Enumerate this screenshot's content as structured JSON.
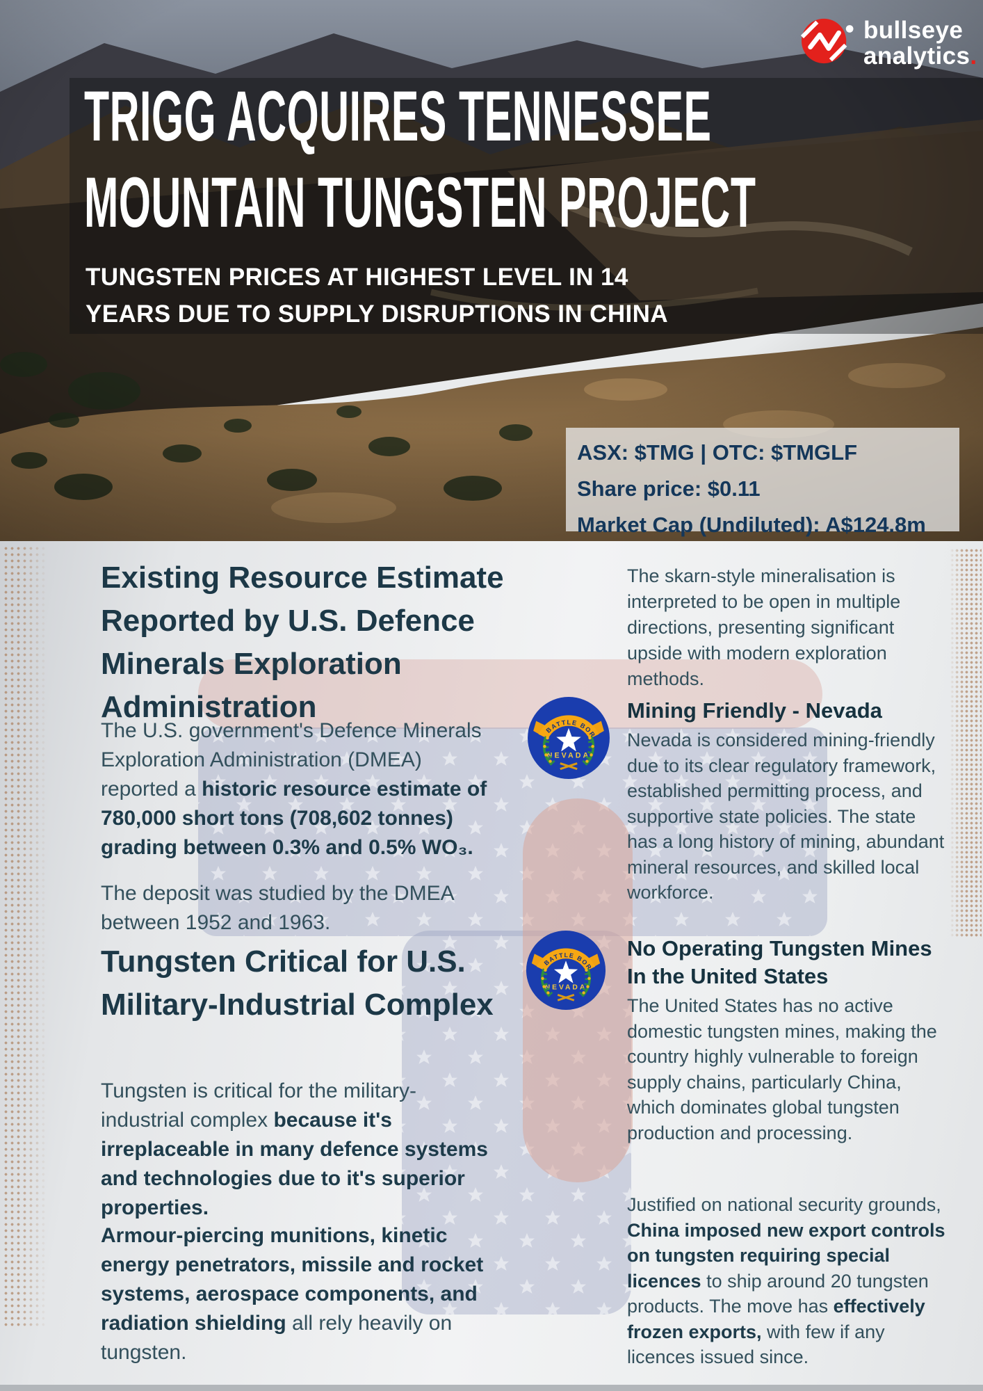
{
  "brand": {
    "line1": "bullseye",
    "line2": "analytics",
    "dot": "."
  },
  "hero": {
    "title_line1": "TRIGG ACQUIRES TENNESSEE",
    "title_line2": "MOUNTAIN TUNGSTEN PROJECT",
    "subtitle_line1": "TUNGSTEN PRICES AT HIGHEST LEVEL IN 14",
    "subtitle_line2": "YEARS DUE TO SUPPLY DISRUPTIONS IN CHINA",
    "stock": {
      "tickers": "ASX: $TMG | OTC: $TMGLF",
      "share_price": "Share price: $0.11",
      "market_cap": "Market Cap (Undiluted): A$124.8m"
    }
  },
  "left_column": {
    "heading1": "Existing Resource Estimate Reported by U.S. Defence Minerals Exploration Administration",
    "para1": [
      {
        "t": "The U.S. government's Defence Minerals Exploration Administration (DMEA) reported a ",
        "b": false
      },
      {
        "t": "historic resource estimate of 780,000 short tons (708,602 tonnes) grading between 0.3% and 0.5% WO₃.",
        "b": true
      }
    ],
    "para2": [
      {
        "t": "The deposit was studied by the DMEA between 1952 and 1963.",
        "b": false
      }
    ],
    "heading2": "Tungsten Critical for U.S. Military-Industrial Complex",
    "para3": [
      {
        "t": "Tungsten is critical for the military-industrial complex ",
        "b": false
      },
      {
        "t": "because it's irreplaceable in many defence systems and technologies due to it's superior properties.",
        "b": true
      }
    ],
    "para4": [
      {
        "t": "Armour-piercing munitions, kinetic energy penetrators, missile and rocket systems, aerospace components, and radiation shielding",
        "b": true
      },
      {
        "t": " all rely heavily on tungsten.",
        "b": false
      }
    ]
  },
  "right_column": {
    "para1": [
      {
        "t": "The skarn-style mineralisation is interpreted to be open in multiple directions, presenting significant upside with modern exploration methods.",
        "b": false
      }
    ],
    "section1": {
      "heading": "Mining Friendly - Nevada",
      "body": [
        {
          "t": "Nevada is considered mining-friendly due to its clear regulatory framework, established permitting process, and supportive state policies. The state has a long history of mining, abundant mineral resources, and skilled local workforce.",
          "b": false
        }
      ]
    },
    "section2": {
      "heading": "No Operating Tungsten Mines In the United States",
      "body": [
        {
          "t": "The United States has no active domestic tungsten mines, making the country highly vulnerable to foreign supply chains, particularly China, which dominates global tungsten production and processing.",
          "b": false
        }
      ]
    },
    "para2": [
      {
        "t": "Justified on national security grounds, ",
        "b": false
      },
      {
        "t": "China imposed new export controls on tungsten requiring special licences",
        "b": true
      },
      {
        "t": " to ship around 20 tungsten products. The move has ",
        "b": false
      },
      {
        "t": "effectively frozen exports,",
        "b": true
      },
      {
        "t": " with few if any licences issued since.",
        "b": false
      }
    ]
  },
  "nevada_flag": {
    "motto": "BATTLE BORN",
    "name": "NEVADA"
  },
  "colors": {
    "accent_red": "#e3211c",
    "navy_heading": "#1c3847",
    "navy_body": "#33505c",
    "stockbox_text": "#14375a",
    "pink_watermark": "#cf8a7d",
    "star_field": "#99a1c0",
    "nevada_blue": "#1a3dae",
    "dots_brown": "#a97650"
  }
}
